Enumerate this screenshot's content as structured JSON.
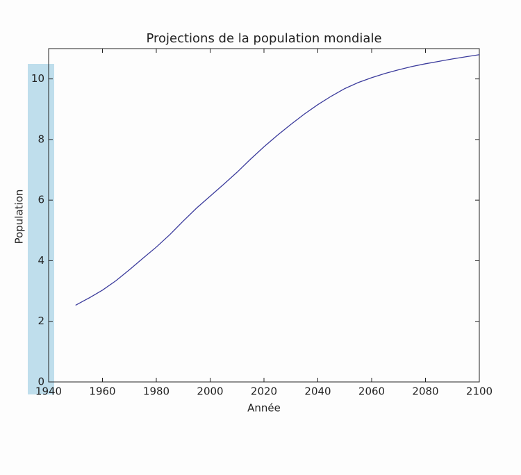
{
  "chart_data": {
    "type": "line",
    "title": "Projections de la population mondiale",
    "x_label": "Année",
    "y_label": "Population",
    "x": [
      1950,
      1955,
      1960,
      1965,
      1970,
      1975,
      1980,
      1985,
      1990,
      1995,
      2000,
      2005,
      2010,
      2015,
      2020,
      2025,
      2030,
      2035,
      2040,
      2045,
      2050,
      2055,
      2060,
      2065,
      2070,
      2075,
      2080,
      2085,
      2090,
      2095,
      2100
    ],
    "series": [
      {
        "name": "Population",
        "color": "#3b3b9c",
        "values": [
          2.53,
          2.77,
          3.03,
          3.34,
          3.7,
          4.08,
          4.45,
          4.86,
          5.31,
          5.74,
          6.13,
          6.52,
          6.92,
          7.35,
          7.76,
          8.14,
          8.5,
          8.84,
          9.15,
          9.43,
          9.68,
          9.88,
          10.04,
          10.18,
          10.3,
          10.41,
          10.5,
          10.58,
          10.66,
          10.73,
          10.8
        ]
      }
    ],
    "xlim": [
      1940,
      2100
    ],
    "xticks": [
      1940,
      1960,
      1980,
      2000,
      2020,
      2040,
      2060,
      2080,
      2100
    ],
    "ylim": [
      0,
      11
    ],
    "yticks": [
      0,
      2,
      4,
      6,
      8,
      10
    ]
  }
}
